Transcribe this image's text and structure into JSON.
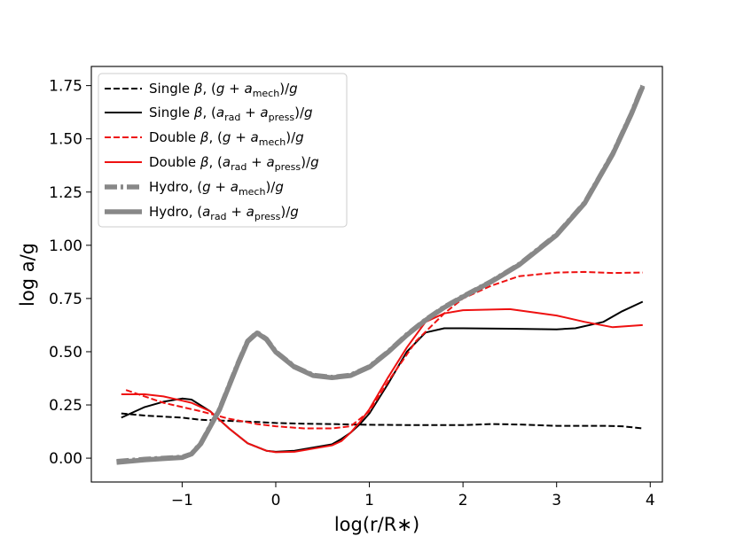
{
  "chart_data": {
    "type": "line",
    "xlabel": "log(r/R∗)",
    "ylabel": "log a/g",
    "xlim": [
      -1.97,
      4.13
    ],
    "ylim": [
      -0.112,
      1.84
    ],
    "xticks": [
      -1,
      0,
      1,
      2,
      3,
      4
    ],
    "xtick_labels": [
      "−1",
      "0",
      "1",
      "2",
      "3",
      "4"
    ],
    "yticks": [
      0.0,
      0.25,
      0.5,
      0.75,
      1.0,
      1.25,
      1.5,
      1.75
    ],
    "ytick_labels": [
      "0.00",
      "0.25",
      "0.50",
      "0.75",
      "1.00",
      "1.25",
      "1.50",
      "1.75"
    ],
    "grid": false,
    "legend_position": "top-left",
    "series": [
      {
        "name": "Single β, (g + a_mech)/g",
        "color": "#000000",
        "style": "dashed",
        "width": "thin",
        "x": [
          -1.65,
          -1.4,
          -1.2,
          -1.0,
          -0.8,
          -0.5,
          -0.2,
          0.0,
          0.3,
          0.6,
          0.8,
          1.0,
          1.5,
          2.0,
          2.3,
          2.6,
          3.0,
          3.5,
          3.7,
          3.92
        ],
        "y": [
          0.21,
          0.2,
          0.195,
          0.19,
          0.18,
          0.175,
          0.17,
          0.165,
          0.162,
          0.16,
          0.158,
          0.157,
          0.155,
          0.155,
          0.16,
          0.158,
          0.152,
          0.152,
          0.15,
          0.14
        ]
      },
      {
        "name": "Single β, (a_rad + a_press)/g",
        "color": "#000000",
        "style": "solid",
        "width": "thin",
        "x": [
          -1.65,
          -1.4,
          -1.2,
          -1.0,
          -0.9,
          -0.7,
          -0.5,
          -0.3,
          -0.1,
          0.0,
          0.2,
          0.4,
          0.6,
          0.7,
          0.8,
          0.9,
          1.0,
          1.2,
          1.4,
          1.6,
          1.8,
          2.0,
          2.5,
          3.0,
          3.2,
          3.5,
          3.7,
          3.92
        ],
        "y": [
          0.19,
          0.24,
          0.265,
          0.28,
          0.275,
          0.22,
          0.14,
          0.07,
          0.035,
          0.03,
          0.035,
          0.05,
          0.065,
          0.09,
          0.12,
          0.16,
          0.21,
          0.35,
          0.5,
          0.59,
          0.61,
          0.61,
          0.608,
          0.605,
          0.61,
          0.64,
          0.69,
          0.735
        ]
      },
      {
        "name": "Double β, (g + a_mech)/g",
        "color": "#ee1111",
        "style": "dashed",
        "width": "thin",
        "x": [
          -1.6,
          -1.4,
          -1.2,
          -1.0,
          -0.8,
          -0.5,
          -0.2,
          0.0,
          0.3,
          0.6,
          0.8,
          1.0,
          1.2,
          1.5,
          1.8,
          2.0,
          2.3,
          2.6,
          3.0,
          3.3,
          3.6,
          3.92
        ],
        "y": [
          0.32,
          0.29,
          0.26,
          0.24,
          0.22,
          0.185,
          0.16,
          0.15,
          0.14,
          0.14,
          0.15,
          0.22,
          0.36,
          0.55,
          0.68,
          0.75,
          0.81,
          0.855,
          0.872,
          0.875,
          0.87,
          0.872
        ]
      },
      {
        "name": "Double β, (a_rad + a_press)/g",
        "color": "#ee1111",
        "style": "solid",
        "width": "thin",
        "x": [
          -1.65,
          -1.4,
          -1.2,
          -1.0,
          -0.9,
          -0.7,
          -0.5,
          -0.3,
          -0.1,
          0.0,
          0.2,
          0.4,
          0.6,
          0.7,
          0.8,
          0.9,
          1.0,
          1.2,
          1.4,
          1.6,
          1.8,
          2.0,
          2.5,
          3.0,
          3.3,
          3.6,
          3.92
        ],
        "y": [
          0.3,
          0.3,
          0.29,
          0.27,
          0.26,
          0.22,
          0.14,
          0.07,
          0.035,
          0.028,
          0.03,
          0.045,
          0.06,
          0.08,
          0.12,
          0.17,
          0.23,
          0.38,
          0.52,
          0.64,
          0.68,
          0.695,
          0.7,
          0.67,
          0.64,
          0.615,
          0.625
        ]
      },
      {
        "name": "Hydro, (g + a_mech)/g",
        "color": "#888888",
        "style": "dashdot",
        "width": "thick",
        "x": [
          -1.7,
          -1.4,
          -1.2,
          -1.0,
          -0.9,
          -0.8,
          -0.6,
          -0.4,
          -0.3,
          -0.2,
          -0.1,
          0.0,
          0.2,
          0.4,
          0.6,
          0.8,
          1.0,
          1.2,
          1.4,
          1.6,
          1.8,
          2.0,
          2.3,
          2.6,
          3.0,
          3.3,
          3.6,
          3.8,
          3.92
        ],
        "y": [
          -0.015,
          -0.005,
          0.0,
          0.005,
          0.02,
          0.07,
          0.23,
          0.45,
          0.55,
          0.59,
          0.56,
          0.5,
          0.43,
          0.39,
          0.38,
          0.39,
          0.43,
          0.5,
          0.58,
          0.65,
          0.71,
          0.76,
          0.83,
          0.91,
          1.05,
          1.2,
          1.43,
          1.62,
          1.75
        ]
      },
      {
        "name": "Hydro, (a_rad + a_press)/g",
        "color": "#888888",
        "style": "solid",
        "width": "thick",
        "x": [
          -1.7,
          -1.4,
          -1.2,
          -1.0,
          -0.9,
          -0.8,
          -0.6,
          -0.4,
          -0.3,
          -0.2,
          -0.1,
          0.0,
          0.2,
          0.4,
          0.6,
          0.8,
          1.0,
          1.2,
          1.4,
          1.6,
          1.8,
          2.0,
          2.3,
          2.6,
          3.0,
          3.3,
          3.6,
          3.8,
          3.92
        ],
        "y": [
          -0.02,
          -0.008,
          -0.002,
          0.003,
          0.02,
          0.068,
          0.228,
          0.448,
          0.548,
          0.588,
          0.558,
          0.498,
          0.428,
          0.388,
          0.378,
          0.388,
          0.428,
          0.498,
          0.578,
          0.648,
          0.708,
          0.758,
          0.828,
          0.908,
          1.048,
          1.198,
          1.428,
          1.618,
          1.745
        ]
      }
    ]
  }
}
